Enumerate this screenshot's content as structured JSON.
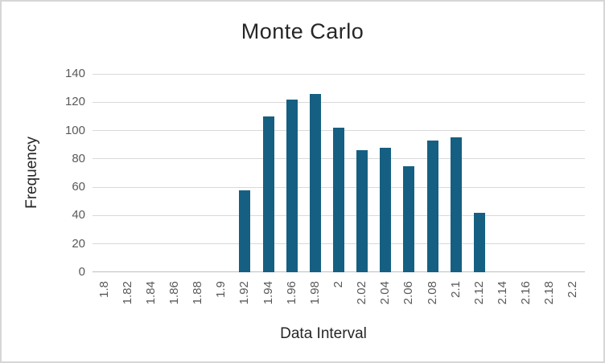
{
  "chart_data": {
    "type": "bar",
    "title": "Monte Carlo",
    "xlabel": "Data Interval",
    "ylabel": "Frequency",
    "categories": [
      "1.8",
      "1.82",
      "1.84",
      "1.86",
      "1.88",
      "1.9",
      "1.92",
      "1.94",
      "1.96",
      "1.98",
      "2",
      "2.02",
      "2.04",
      "2.06",
      "2.08",
      "2.1",
      "2.12",
      "2.14",
      "2.16",
      "2.18",
      "2.2"
    ],
    "series": [
      {
        "name": "Frequency",
        "values": [
          null,
          null,
          null,
          null,
          null,
          null,
          58,
          110,
          122,
          126,
          102,
          86,
          88,
          75,
          93,
          95,
          42,
          null,
          null,
          null,
          null
        ]
      }
    ],
    "ylim": [
      0,
      140
    ],
    "ytick_step": 20,
    "yticks": [
      0,
      20,
      40,
      60,
      80,
      100,
      120,
      140
    ],
    "grid": true,
    "legend_position": "none",
    "colors": {
      "bar": "#156082",
      "gridline": "#d9d9d9",
      "axis_line": "#bfbfbf",
      "title_text": "#262626",
      "axis_title_text": "#262626",
      "tick_label_text": "#595959",
      "background": "#ffffff",
      "frame_border": "#d6d6d6"
    }
  }
}
